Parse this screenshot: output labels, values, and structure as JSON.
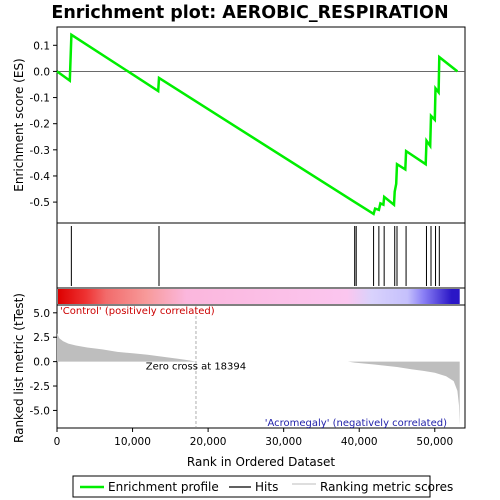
{
  "chart_data": {
    "type": "line",
    "title": "Enrichment plot: AEROBIC_RESPIRATION",
    "xlabel": "Rank in Ordered Dataset",
    "xlim": [
      0,
      54000
    ],
    "x_ticks": [
      "0",
      "10,000",
      "20,000",
      "30,000",
      "40,000",
      "50,000"
    ],
    "x_tick_values": [
      0,
      10000,
      20000,
      30000,
      40000,
      50000
    ],
    "top_panel": {
      "ylabel": "Enrichment score (ES)",
      "ylim": [
        -0.58,
        0.17
      ],
      "y_ticks": [
        "0.1",
        "0.0",
        "-0.1",
        "-0.2",
        "-0.3",
        "-0.4",
        "-0.5"
      ],
      "y_tick_values": [
        0.1,
        0.0,
        -0.1,
        -0.2,
        -0.3,
        -0.4,
        -0.5
      ],
      "series": [
        {
          "name": "Enrichment profile",
          "color": "#00ff00",
          "x": [
            0,
            1700,
            1900,
            13400,
            13500,
            39400,
            41900,
            42100,
            42600,
            42800,
            43200,
            43300,
            44600,
            44700,
            44900,
            45000,
            46100,
            46200,
            48800,
            48900,
            49400,
            49500,
            50000,
            50100,
            50500,
            50600,
            53000
          ],
          "y": [
            0.0,
            -0.035,
            0.14,
            -0.075,
            -0.025,
            -0.5,
            -0.545,
            -0.525,
            -0.53,
            -0.505,
            -0.51,
            -0.48,
            -0.51,
            -0.46,
            -0.43,
            -0.355,
            -0.375,
            -0.305,
            -0.355,
            -0.265,
            -0.285,
            -0.17,
            -0.185,
            -0.065,
            -0.08,
            0.055,
            0.0
          ]
        }
      ]
    },
    "hits": {
      "name": "Hits",
      "color": "#000000",
      "ranks": [
        1900,
        13500,
        39400,
        39600,
        41900,
        42600,
        43300,
        44700,
        45000,
        46200,
        48900,
        49500,
        50100,
        50600
      ]
    },
    "colorbar": {
      "gradient_stops": [
        "#dd0000",
        "#ee3333",
        "#f26b6b",
        "#f79a9a",
        "#fbb7dd",
        "#fbc6ef",
        "#d9d2fc",
        "#c5c0fc",
        "#8a7ff5",
        "#2a16c6"
      ],
      "label_positive": "'Control' (positively correlated)",
      "label_negative": "'Acromegaly' (negatively correlated)"
    },
    "bottom_panel": {
      "ylabel": "Ranked list metric (tTest)",
      "ylim": [
        -6.8,
        5.8
      ],
      "y_ticks": [
        "5.0",
        "2.5",
        "0.0",
        "-2.5",
        "-5.0"
      ],
      "y_tick_values": [
        5.0,
        2.5,
        0.0,
        -2.5,
        -5.0
      ],
      "zero_cross_label": "Zero cross at 18394",
      "zero_cross": 18394,
      "series": [
        {
          "name": "Ranking metric scores",
          "color": "#bebebe",
          "x": [
            0,
            300,
            800,
            1500,
            2500,
            4000,
            6000,
            8000,
            10000,
            12000,
            14000,
            16000,
            17500,
            18394,
            20000,
            30000,
            38500,
            39400,
            42000,
            45000,
            47000,
            48500,
            50000,
            51500,
            52500,
            53000,
            53200,
            53300
          ],
          "y": [
            2.9,
            2.4,
            2.1,
            1.85,
            1.65,
            1.45,
            1.25,
            1.0,
            0.85,
            0.7,
            0.5,
            0.3,
            0.12,
            0.0,
            0.0,
            0.0,
            0.0,
            -0.1,
            -0.3,
            -0.55,
            -0.8,
            -0.95,
            -1.15,
            -1.5,
            -2.0,
            -3.0,
            -4.5,
            -6.5
          ]
        }
      ]
    },
    "legend": {
      "placement": "bottom",
      "entries": [
        "Enrichment profile",
        "Hits",
        "Ranking metric scores"
      ]
    }
  }
}
